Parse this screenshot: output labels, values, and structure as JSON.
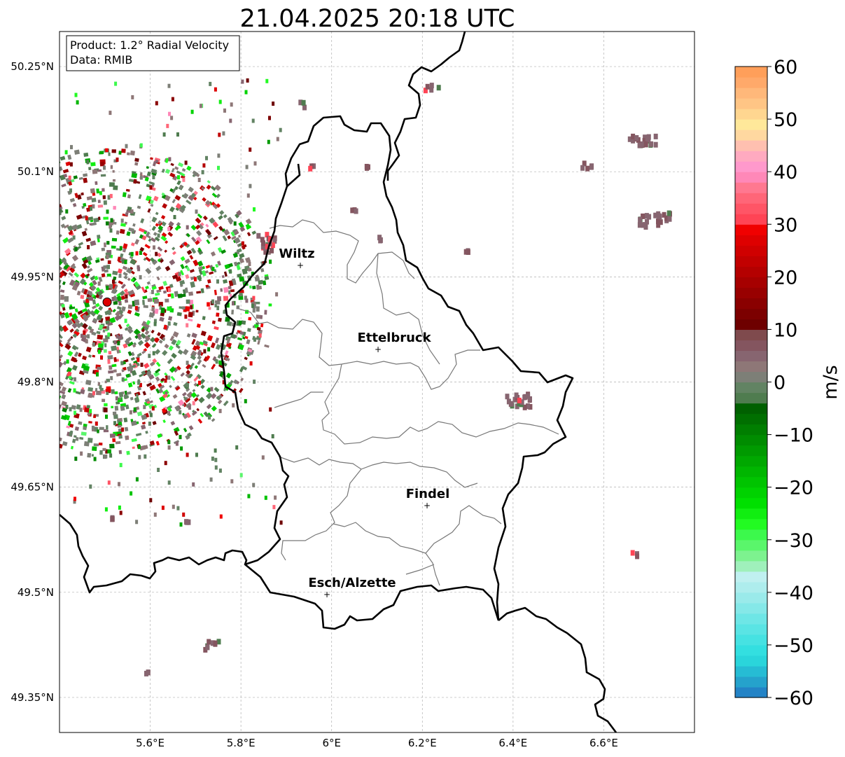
{
  "title": "21.04.2025 20:18 UTC",
  "info": {
    "product": "Product: 1.2° Radial Velocity",
    "data": "Data: RMIB"
  },
  "map": {
    "lon_range": [
      5.4,
      6.8
    ],
    "lat_range": [
      49.3,
      50.3
    ],
    "lat_ticks": [
      {
        "value": 50.25,
        "label": "50.25°N"
      },
      {
        "value": 50.1,
        "label": "50.1°N"
      },
      {
        "value": 49.95,
        "label": "49.95°N"
      },
      {
        "value": 49.8,
        "label": "49.8°N"
      },
      {
        "value": 49.65,
        "label": "49.65°N"
      },
      {
        "value": 49.5,
        "label": "49.5°N"
      },
      {
        "value": 49.35,
        "label": "49.35°N"
      }
    ],
    "lon_ticks": [
      {
        "value": 5.6,
        "label": "5.6°E"
      },
      {
        "value": 5.8,
        "label": "5.8°E"
      },
      {
        "value": 6.0,
        "label": "6°E"
      },
      {
        "value": 6.2,
        "label": "6.2°E"
      },
      {
        "value": 6.4,
        "label": "6.4°E"
      },
      {
        "value": 6.6,
        "label": "6.6°E"
      }
    ],
    "cities": [
      {
        "name": "Wiltz",
        "lon": 5.93,
        "lat": 49.965
      },
      {
        "name": "Ettelbruck",
        "lon": 6.1,
        "lat": 49.848
      },
      {
        "name": "Findel",
        "lon": 6.21,
        "lat": 49.625
      },
      {
        "name": "Esch/Alzette",
        "lon": 5.99,
        "lat": 49.499
      }
    ],
    "radar_site": {
      "lon": 5.505,
      "lat": 49.914,
      "color": "#dd0000"
    }
  },
  "colorbar": {
    "label": "m/s",
    "min": -60,
    "max": 60,
    "ticks": [
      {
        "value": 60,
        "label": "60"
      },
      {
        "value": 50,
        "label": "50"
      },
      {
        "value": 40,
        "label": "40"
      },
      {
        "value": 30,
        "label": "30"
      },
      {
        "value": 20,
        "label": "20"
      },
      {
        "value": 10,
        "label": "10"
      },
      {
        "value": 0,
        "label": "0"
      },
      {
        "value": -10,
        "label": "−10"
      },
      {
        "value": -20,
        "label": "−20"
      },
      {
        "value": -30,
        "label": "−30"
      },
      {
        "value": -40,
        "label": "−40"
      },
      {
        "value": -50,
        "label": "−50"
      },
      {
        "value": -60,
        "label": "−60"
      }
    ],
    "stops": [
      {
        "from": -60,
        "to": -58,
        "color": "#2383c6"
      },
      {
        "from": -58,
        "to": -56,
        "color": "#25a2cc"
      },
      {
        "from": -56,
        "to": -54,
        "color": "#26bcd4"
      },
      {
        "from": -54,
        "to": -52,
        "color": "#2ad5db"
      },
      {
        "from": -52,
        "to": -50,
        "color": "#33dfe0"
      },
      {
        "from": -50,
        "to": -48,
        "color": "#46e2e2"
      },
      {
        "from": -48,
        "to": -46,
        "color": "#5ae4e4"
      },
      {
        "from": -46,
        "to": -44,
        "color": "#6ee6e6"
      },
      {
        "from": -44,
        "to": -42,
        "color": "#85e8e8"
      },
      {
        "from": -42,
        "to": -40,
        "color": "#9aeaea"
      },
      {
        "from": -40,
        "to": -38,
        "color": "#aeeded"
      },
      {
        "from": -38,
        "to": -36,
        "color": "#c0f0f0"
      },
      {
        "from": -36,
        "to": -34,
        "color": "#9ff0bb"
      },
      {
        "from": -34,
        "to": -32,
        "color": "#7df28f"
      },
      {
        "from": -32,
        "to": -30,
        "color": "#5af66b"
      },
      {
        "from": -30,
        "to": -28,
        "color": "#3cf94c"
      },
      {
        "from": -28,
        "to": -26,
        "color": "#22fb22"
      },
      {
        "from": -26,
        "to": -24,
        "color": "#11ee11"
      },
      {
        "from": -24,
        "to": -22,
        "color": "#00e000"
      },
      {
        "from": -22,
        "to": -20,
        "color": "#00d200"
      },
      {
        "from": -20,
        "to": -18,
        "color": "#00c400"
      },
      {
        "from": -18,
        "to": -16,
        "color": "#00b600"
      },
      {
        "from": -16,
        "to": -14,
        "color": "#00a800"
      },
      {
        "from": -14,
        "to": -12,
        "color": "#009a00"
      },
      {
        "from": -12,
        "to": -10,
        "color": "#008c00"
      },
      {
        "from": -10,
        "to": -8,
        "color": "#007e00"
      },
      {
        "from": -8,
        "to": -6,
        "color": "#006f00"
      },
      {
        "from": -6,
        "to": -4,
        "color": "#006000"
      },
      {
        "from": -4,
        "to": -2,
        "color": "#4f7c4f"
      },
      {
        "from": -2,
        "to": 0,
        "color": "#628363"
      },
      {
        "from": 0,
        "to": 2,
        "color": "#7d7f77"
      },
      {
        "from": 2,
        "to": 4,
        "color": "#8e7777"
      },
      {
        "from": 4,
        "to": 6,
        "color": "#876570"
      },
      {
        "from": 6,
        "to": 8,
        "color": "#84555f"
      },
      {
        "from": 8,
        "to": 10,
        "color": "#7f4a4d"
      },
      {
        "from": 10,
        "to": 12,
        "color": "#6e0000"
      },
      {
        "from": 12,
        "to": 14,
        "color": "#7c0000"
      },
      {
        "from": 14,
        "to": 16,
        "color": "#8a0000"
      },
      {
        "from": 16,
        "to": 18,
        "color": "#980000"
      },
      {
        "from": 18,
        "to": 20,
        "color": "#a60000"
      },
      {
        "from": 20,
        "to": 22,
        "color": "#b40000"
      },
      {
        "from": 22,
        "to": 24,
        "color": "#c20000"
      },
      {
        "from": 24,
        "to": 26,
        "color": "#d00000"
      },
      {
        "from": 26,
        "to": 28,
        "color": "#de0000"
      },
      {
        "from": 28,
        "to": 30,
        "color": "#f00000"
      },
      {
        "from": 30,
        "to": 32,
        "color": "#ff4455"
      },
      {
        "from": 32,
        "to": 34,
        "color": "#ff5566"
      },
      {
        "from": 34,
        "to": 36,
        "color": "#ff6678"
      },
      {
        "from": 36,
        "to": 38,
        "color": "#ff7890"
      },
      {
        "from": 38,
        "to": 40,
        "color": "#ff88b8"
      },
      {
        "from": 40,
        "to": 42,
        "color": "#ff99cc"
      },
      {
        "from": 42,
        "to": 44,
        "color": "#ffaac0"
      },
      {
        "from": 44,
        "to": 46,
        "color": "#ffc0b0"
      },
      {
        "from": 46,
        "to": 48,
        "color": "#ffd8a0"
      },
      {
        "from": 48,
        "to": 50,
        "color": "#ffe89a"
      },
      {
        "from": 50,
        "to": 52,
        "color": "#ffd690"
      },
      {
        "from": 52,
        "to": 54,
        "color": "#ffc585"
      },
      {
        "from": 54,
        "to": 56,
        "color": "#ffb87a"
      },
      {
        "from": 56,
        "to": 58,
        "color": "#ffa96a"
      },
      {
        "from": 58,
        "to": 60,
        "color": "#ff9f5a"
      }
    ]
  }
}
